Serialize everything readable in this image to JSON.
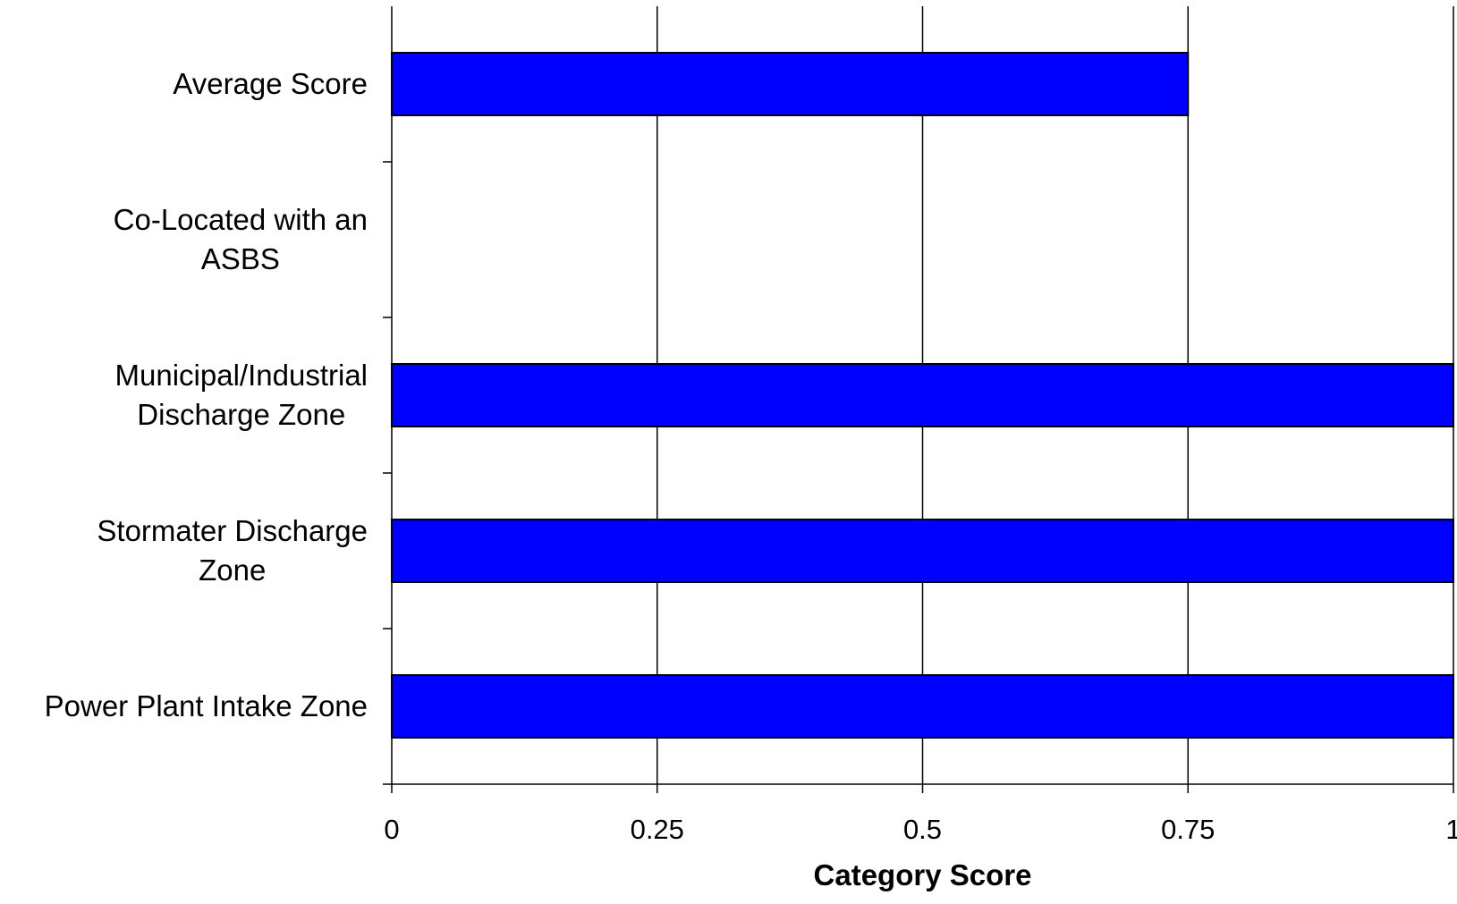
{
  "chart_data": {
    "type": "bar",
    "orientation": "horizontal",
    "title": "",
    "xlabel": "Category Score",
    "ylabel": "",
    "xlim": [
      0,
      1
    ],
    "x_ticks": [
      "0",
      "0.25",
      "0.5",
      "0.75",
      "1"
    ],
    "x_tick_values": [
      0,
      0.25,
      0.5,
      0.75,
      1
    ],
    "categories": [
      {
        "lines": [
          "Average Score"
        ]
      },
      {
        "lines": [
          "Co-Located with an",
          "ASBS"
        ]
      },
      {
        "lines": [
          "Municipal/Industrial",
          "Discharge Zone"
        ]
      },
      {
        "lines": [
          "Stormater Discharge",
          "Zone"
        ]
      },
      {
        "lines": [
          "Power Plant Intake Zone"
        ]
      }
    ],
    "values": [
      0.75,
      0,
      1,
      1,
      1
    ],
    "grid": true,
    "legend": "none",
    "colors": {
      "bar": "#0000ff",
      "bar_border": "#000000",
      "grid": "#000000",
      "axis": "#000000"
    }
  }
}
